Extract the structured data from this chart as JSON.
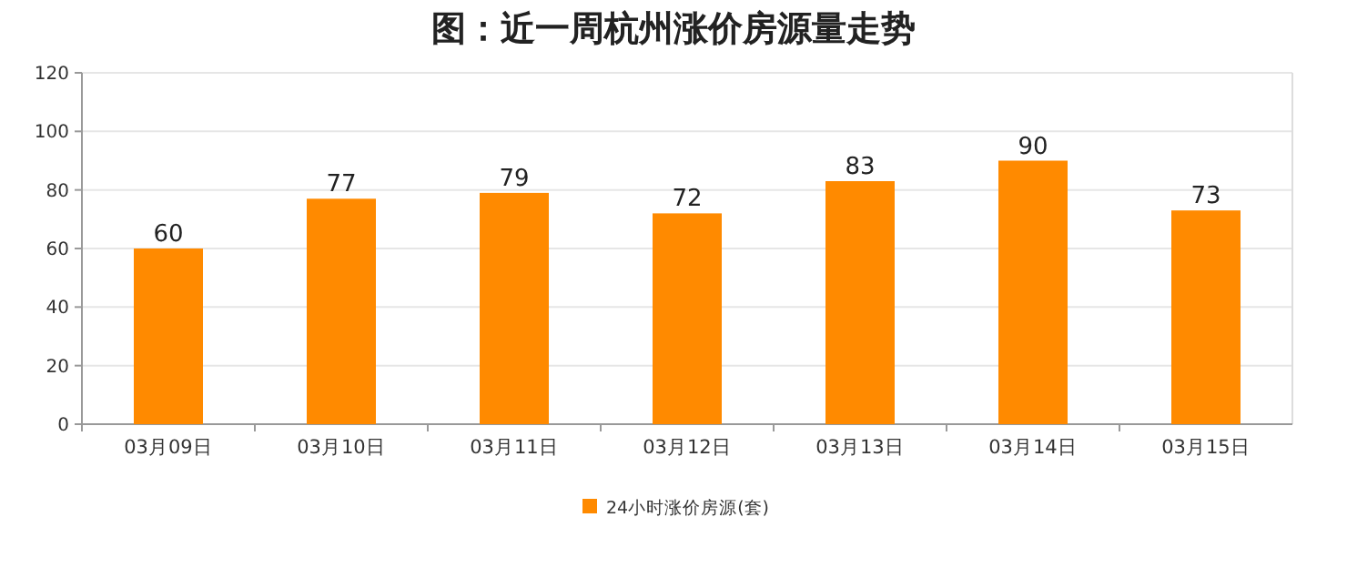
{
  "chart_data": {
    "type": "bar",
    "title": "图：近一周杭州涨价房源量走势",
    "categories": [
      "03月09日",
      "03月10日",
      "03月11日",
      "03月12日",
      "03月13日",
      "03月14日",
      "03月15日"
    ],
    "series": [
      {
        "name": "24小时涨价房源(套)",
        "color": "#ff8a00",
        "values": [
          60,
          77,
          79,
          72,
          83,
          90,
          73
        ]
      }
    ],
    "ylim": [
      0,
      120
    ],
    "yticks": [
      0,
      20,
      40,
      60,
      80,
      100,
      120
    ],
    "grid": "y",
    "legend": "bottom",
    "data_labels": true
  }
}
